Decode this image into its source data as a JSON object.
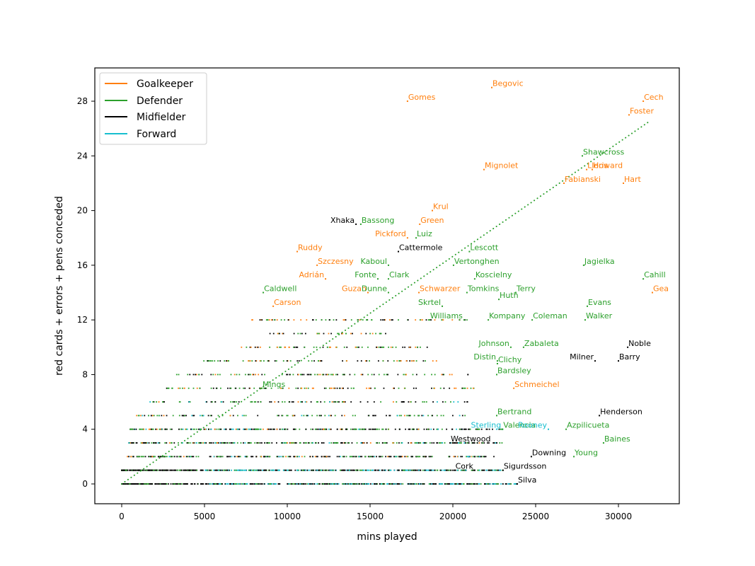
{
  "chart_data": {
    "type": "scatter",
    "title": "",
    "xlabel": "mins played",
    "ylabel": "red cards + errors + pens conceded",
    "xlim": [
      -1600,
      33500
    ],
    "ylim": [
      -1.5,
      30.5
    ],
    "xticks": [
      0,
      5000,
      10000,
      15000,
      20000,
      25000,
      30000
    ],
    "xtick_labels": [
      "0",
      "5000",
      "10000",
      "15000",
      "20000",
      "25000",
      "30000"
    ],
    "yticks": [
      0,
      4,
      8,
      12,
      16,
      20,
      24,
      28
    ],
    "ytick_labels": [
      "0",
      "4",
      "8",
      "12",
      "16",
      "20",
      "24",
      "28"
    ],
    "grid": false,
    "legend_position": "upper left",
    "legend": [
      {
        "label": "Goalkeeper",
        "color": "#ff7f0e"
      },
      {
        "label": "Defender",
        "color": "#2ca02c"
      },
      {
        "label": "Midfielder",
        "color": "#000000"
      },
      {
        "label": "Forward",
        "color": "#17becf"
      }
    ],
    "trend_line": {
      "style": "dotted",
      "color": "#2ca02c",
      "x": [
        0,
        31840
      ],
      "y": [
        0,
        26.5
      ]
    },
    "labeled_points": [
      {
        "name": "Begovic",
        "pos": "Goalkeeper",
        "x": 22350,
        "y": 29
      },
      {
        "name": "Gomes",
        "pos": "Goalkeeper",
        "x": 17260,
        "y": 28
      },
      {
        "name": "Cech",
        "pos": "Goalkeeper",
        "x": 31500,
        "y": 28
      },
      {
        "name": "Foster",
        "pos": "Goalkeeper",
        "x": 30640,
        "y": 27
      },
      {
        "name": "Shawcross",
        "pos": "Defender",
        "x": 27820,
        "y": 24
      },
      {
        "name": "Mignolet",
        "pos": "Goalkeeper",
        "x": 21880,
        "y": 23
      },
      {
        "name": "Lloris",
        "pos": "Goalkeeper",
        "x": 28080,
        "y": 23
      },
      {
        "name": "Howard",
        "pos": "Goalkeeper",
        "x": 28420,
        "y": 23
      },
      {
        "name": "Fabianski",
        "pos": "Goalkeeper",
        "x": 26710,
        "y": 22
      },
      {
        "name": "Hart",
        "pos": "Goalkeeper",
        "x": 30300,
        "y": 22
      },
      {
        "name": "Krul",
        "pos": "Goalkeeper",
        "x": 18760,
        "y": 20
      },
      {
        "name": "Xhaka",
        "pos": "Midfielder",
        "x": 14150,
        "y": 19,
        "label_left": true
      },
      {
        "name": "Bassong",
        "pos": "Defender",
        "x": 14440,
        "y": 19
      },
      {
        "name": "Green",
        "pos": "Goalkeeper",
        "x": 18000,
        "y": 19
      },
      {
        "name": "Pickford",
        "pos": "Goalkeeper",
        "x": 17260,
        "y": 18,
        "label_left": true
      },
      {
        "name": "Luiz",
        "pos": "Defender",
        "x": 17780,
        "y": 18
      },
      {
        "name": "Ruddy",
        "pos": "Goalkeeper",
        "x": 10600,
        "y": 17
      },
      {
        "name": "Cattermole",
        "pos": "Midfielder",
        "x": 16710,
        "y": 17
      },
      {
        "name": "Lescott",
        "pos": "Defender",
        "x": 21000,
        "y": 17
      },
      {
        "name": "Szczesny",
        "pos": "Goalkeeper",
        "x": 11800,
        "y": 16
      },
      {
        "name": "Kaboul",
        "pos": "Defender",
        "x": 16110,
        "y": 16,
        "label_left": true
      },
      {
        "name": "Vertonghen",
        "pos": "Defender",
        "x": 20040,
        "y": 16
      },
      {
        "name": "Jagielka",
        "pos": "Defender",
        "x": 27900,
        "y": 16
      },
      {
        "name": "Adrián",
        "pos": "Goalkeeper",
        "x": 12310,
        "y": 15,
        "label_left": true
      },
      {
        "name": "Fonte",
        "pos": "Defender",
        "x": 15470,
        "y": 15,
        "label_left": true
      },
      {
        "name": "Clark",
        "pos": "Defender",
        "x": 16110,
        "y": 15
      },
      {
        "name": "Koscielny",
        "pos": "Defender",
        "x": 21320,
        "y": 15
      },
      {
        "name": "Cahill",
        "pos": "Defender",
        "x": 31500,
        "y": 15
      },
      {
        "name": "Caldwell",
        "pos": "Defender",
        "x": 8550,
        "y": 14
      },
      {
        "name": "Guzan",
        "pos": "Goalkeeper",
        "x": 14870,
        "y": 14,
        "label_left": true
      },
      {
        "name": "Dunne",
        "pos": "Defender",
        "x": 16110,
        "y": 14,
        "label_left": true
      },
      {
        "name": "Schwarzer",
        "pos": "Goalkeeper",
        "x": 17950,
        "y": 14
      },
      {
        "name": "Tomkins",
        "pos": "Defender",
        "x": 20850,
        "y": 14
      },
      {
        "name": "Huth",
        "pos": "Defender",
        "x": 22780,
        "y": 13.5
      },
      {
        "name": "Terry",
        "pos": "Defender",
        "x": 23800,
        "y": 14
      },
      {
        "name": "Gea",
        "pos": "Goalkeeper",
        "x": 32050,
        "y": 14
      },
      {
        "name": "Skrtel",
        "pos": "Defender",
        "x": 19360,
        "y": 13,
        "label_left": true
      },
      {
        "name": "Carson",
        "pos": "Goalkeeper",
        "x": 9150,
        "y": 13
      },
      {
        "name": "Evans",
        "pos": "Defender",
        "x": 28120,
        "y": 13
      },
      {
        "name": "Williams",
        "pos": "Defender",
        "x": 20680,
        "y": 12,
        "label_left": true
      },
      {
        "name": "Kompany",
        "pos": "Defender",
        "x": 22140,
        "y": 12
      },
      {
        "name": "Coleman",
        "pos": "Defender",
        "x": 24790,
        "y": 12
      },
      {
        "name": "Walker",
        "pos": "Defender",
        "x": 27990,
        "y": 12
      },
      {
        "name": "Johnson",
        "pos": "Defender",
        "x": 23500,
        "y": 10,
        "label_left": true
      },
      {
        "name": "Zabaleta",
        "pos": "Defender",
        "x": 24270,
        "y": 10
      },
      {
        "name": "Noble",
        "pos": "Midfielder",
        "x": 30560,
        "y": 10
      },
      {
        "name": "Distin",
        "pos": "Defender",
        "x": 22690,
        "y": 9,
        "label_left": true
      },
      {
        "name": "Milner",
        "pos": "Midfielder",
        "x": 28590,
        "y": 9,
        "label_left": true
      },
      {
        "name": "Barry",
        "pos": "Midfielder",
        "x": 30000,
        "y": 9
      },
      {
        "name": "Clichy",
        "pos": "Defender",
        "x": 22690,
        "y": 8.8
      },
      {
        "name": "Bardsley",
        "pos": "Defender",
        "x": 22650,
        "y": 8
      },
      {
        "name": "Mings",
        "pos": "Defender",
        "x": 8460,
        "y": 7
      },
      {
        "name": "Schmeichel",
        "pos": "Goalkeeper",
        "x": 23680,
        "y": 7
      },
      {
        "name": "Bertrand",
        "pos": "Defender",
        "x": 22650,
        "y": 5
      },
      {
        "name": "Henderson",
        "pos": "Midfielder",
        "x": 28850,
        "y": 5
      },
      {
        "name": "Sterling",
        "pos": "Forward",
        "x": 23000,
        "y": 4,
        "label_left": true
      },
      {
        "name": "Valencia",
        "pos": "Defender",
        "x": 23000,
        "y": 4
      },
      {
        "name": "Rooney",
        "pos": "Forward",
        "x": 25770,
        "y": 4,
        "label_left": true
      },
      {
        "name": "Azpilicueta",
        "pos": "Defender",
        "x": 26840,
        "y": 4
      },
      {
        "name": "Westwood",
        "pos": "Midfielder",
        "x": 19830,
        "y": 3
      },
      {
        "name": "Baines",
        "pos": "Defender",
        "x": 29100,
        "y": 3
      },
      {
        "name": "Downing",
        "pos": "Midfielder",
        "x": 24740,
        "y": 2
      },
      {
        "name": "Young",
        "pos": "Defender",
        "x": 27310,
        "y": 2
      },
      {
        "name": "Cork",
        "pos": "Midfielder",
        "x": 21320,
        "y": 1,
        "label_left": true
      },
      {
        "name": "Sigurdsson",
        "pos": "Midfielder",
        "x": 23030,
        "y": 1
      },
      {
        "name": "Silva",
        "pos": "Midfielder",
        "x": 23890,
        "y": 0
      }
    ],
    "unlabeled_points_rows": [
      {
        "y": 0,
        "x_range": [
          0,
          24000
        ],
        "note": "dense band, mostly midfielders/forwards"
      },
      {
        "y": 1,
        "x_range": [
          0,
          23000
        ],
        "note": "dense band"
      },
      {
        "y": 2,
        "x_range": [
          300,
          22500
        ]
      },
      {
        "y": 3,
        "x_range": [
          300,
          23000
        ]
      },
      {
        "y": 4,
        "x_range": [
          500,
          23000
        ]
      },
      {
        "y": 5,
        "x_range": [
          900,
          21000
        ]
      },
      {
        "y": 6,
        "x_range": [
          1500,
          21000
        ]
      },
      {
        "y": 7,
        "x_range": [
          2600,
          21500
        ]
      },
      {
        "y": 8,
        "x_range": [
          3300,
          21000
        ]
      },
      {
        "y": 9,
        "x_range": [
          4900,
          19200
        ]
      },
      {
        "y": 10,
        "x_range": [
          7000,
          18600
        ]
      },
      {
        "y": 11,
        "x_range": [
          8700,
          16000
        ]
      },
      {
        "y": 12,
        "x_range": [
          7300,
          21000
        ]
      }
    ]
  }
}
